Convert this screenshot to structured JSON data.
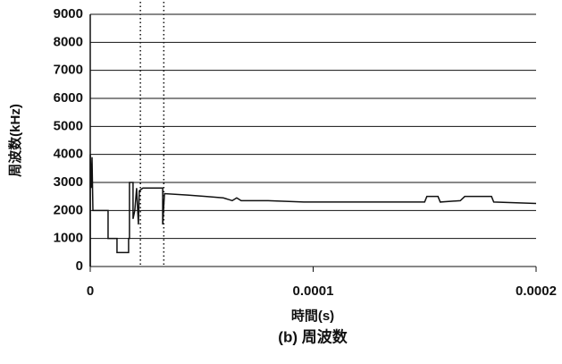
{
  "chart_data": {
    "type": "line",
    "title": "(b) 周波数",
    "x_label": "時間(s)",
    "y_label": "周波数(kHz)",
    "xlim": [
      0,
      0.0002
    ],
    "xticks": [
      0,
      0.0001,
      0.0002
    ],
    "ylim": [
      0,
      9000
    ],
    "yticks": [
      0,
      1000,
      2000,
      3000,
      4000,
      5000,
      6000,
      7000,
      8000,
      9000
    ],
    "grid": true,
    "reference_lines": [
      2.25e-05,
      3.3e-05
    ],
    "series": [
      {
        "color": "#111111",
        "x": [
          0,
          0,
          4e-07,
          8e-07,
          1.2e-06,
          8e-06,
          8e-06,
          1.2e-05,
          1.2e-05,
          1.72e-05,
          1.72e-05,
          1.76e-05,
          1.76e-05,
          1.92e-05,
          1.92e-05,
          2e-05,
          2.08e-05,
          2.16e-05,
          2.2e-05,
          2.36e-05,
          3.25e-05,
          3.25e-05,
          3.33e-05,
          4.37e-05,
          5.17e-05,
          5.97e-05,
          6.37e-05,
          6.57e-05,
          6.77e-05,
          7.98e-05,
          9.58e-05,
          0.00015,
          0.000151,
          0.000156,
          0.000157,
          0.000166,
          0.000168,
          0.00018,
          0.000181,
          0.0002
        ],
        "values": [
          0,
          4000,
          2800,
          3900,
          2000,
          2000,
          1000,
          1000,
          500,
          500,
          1000,
          1000,
          3000,
          3000,
          1700,
          2000,
          2800,
          1500,
          2700,
          2800,
          2800,
          1500,
          2600,
          2550,
          2500,
          2450,
          2350,
          2450,
          2350,
          2350,
          2300,
          2300,
          2500,
          2500,
          2300,
          2350,
          2500,
          2500,
          2300,
          2250
        ]
      }
    ]
  }
}
